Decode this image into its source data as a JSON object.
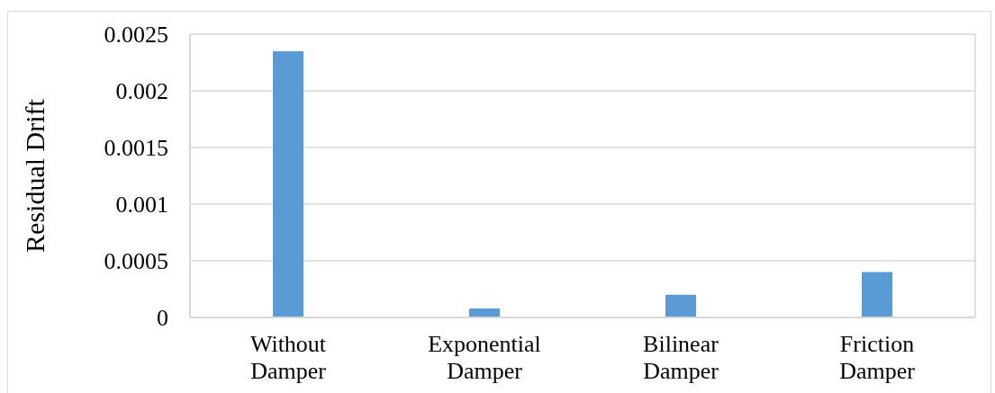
{
  "chart_data": {
    "type": "bar",
    "ylabel": "Residual Drift",
    "categories": [
      "Without Damper",
      "Exponential Damper",
      "Bilinear Damper",
      "Friction Damper"
    ],
    "values": [
      0.00235,
      8e-05,
      0.0002,
      0.0004
    ],
    "color": "#5b9bd5",
    "ylim": [
      0,
      0.0025
    ],
    "yticks": [
      0,
      0.0005,
      0.001,
      0.0015,
      0.002,
      0.0025
    ],
    "grid": "y"
  }
}
